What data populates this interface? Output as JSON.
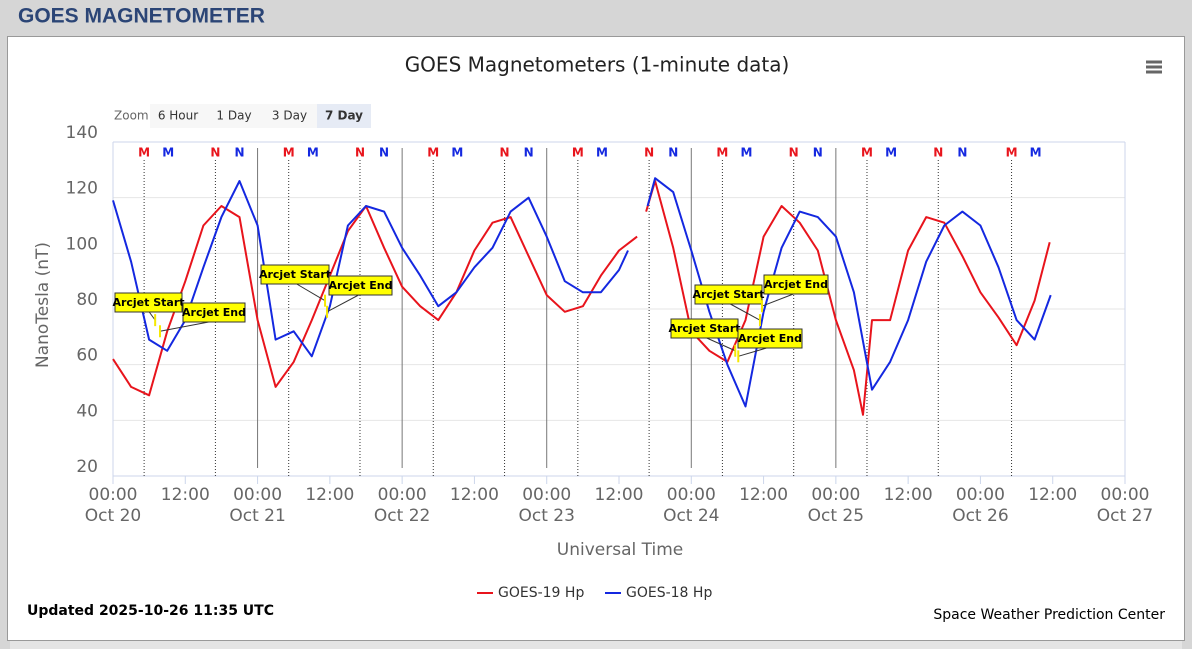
{
  "header": {
    "title": "GOES MAGNETOMETER"
  },
  "zoom": {
    "label": "Zoom",
    "buttons": [
      {
        "label": "6 Hour",
        "selected": false
      },
      {
        "label": "1 Day",
        "selected": false
      },
      {
        "label": "3 Day",
        "selected": false
      },
      {
        "label": "7 Day",
        "selected": true
      }
    ]
  },
  "chart_data": {
    "type": "line",
    "title": "GOES Magnetometers (1-minute data)",
    "x_label": "Universal Time",
    "y_label": "NanoTesla (nT)",
    "xlim": [
      "Oct 20 00:00",
      "Oct 27 00:00"
    ],
    "xticks": [
      {
        "value": "Oct 20 00:00",
        "label": "00:00",
        "date": "Oct 20"
      },
      {
        "value": "Oct 20 12:00",
        "label": "12:00"
      },
      {
        "value": "Oct 21 00:00",
        "label": "00:00",
        "date": "Oct 21"
      },
      {
        "value": "Oct 21 12:00",
        "label": "12:00"
      },
      {
        "value": "Oct 22 00:00",
        "label": "00:00",
        "date": "Oct 22"
      },
      {
        "value": "Oct 22 12:00",
        "label": "12:00"
      },
      {
        "value": "Oct 23 00:00",
        "label": "00:00",
        "date": "Oct 23"
      },
      {
        "value": "Oct 23 12:00",
        "label": "12:00"
      },
      {
        "value": "Oct 24 00:00",
        "label": "00:00",
        "date": "Oct 24"
      },
      {
        "value": "Oct 24 12:00",
        "label": "12:00"
      },
      {
        "value": "Oct 25 00:00",
        "label": "00:00",
        "date": "Oct 25"
      },
      {
        "value": "Oct 25 12:00",
        "label": "12:00"
      },
      {
        "value": "Oct 26 00:00",
        "label": "00:00",
        "date": "Oct 26"
      },
      {
        "value": "Oct 26 12:00",
        "label": "12:00"
      },
      {
        "value": "Oct 27 00:00",
        "label": "00:00",
        "date": "Oct 27"
      }
    ],
    "ylim": [
      20,
      140
    ],
    "yticks": [
      20,
      40,
      60,
      80,
      100,
      120,
      140
    ],
    "grid": true,
    "series": [
      {
        "name": "GOES-19 Hp",
        "color": "#e8141c",
        "x": [
          "Oct 20 00:00",
          "Oct 20 03:00",
          "Oct 20 06:00",
          "Oct 20 09:00",
          "Oct 20 12:00",
          "Oct 20 15:00",
          "Oct 20 18:00",
          "Oct 20 21:00",
          "Oct 21 00:00",
          "Oct 21 03:00",
          "Oct 21 06:00",
          "Oct 21 09:00",
          "Oct 21 12:00",
          "Oct 21 15:00",
          "Oct 21 18:00",
          "Oct 21 21:00",
          "Oct 22 00:00",
          "Oct 22 03:00",
          "Oct 22 06:00",
          "Oct 22 09:00",
          "Oct 22 12:00",
          "Oct 22 15:00",
          "Oct 22 18:00",
          "Oct 22 21:00",
          "Oct 23 00:00",
          "Oct 23 03:00",
          "Oct 23 06:00",
          "Oct 23 09:00",
          "Oct 23 12:00",
          "Oct 23 15:00",
          "Oct 23 15:30",
          "Oct 23 16:30",
          "Oct 23 18:00",
          "Oct 23 21:00",
          "Oct 24 00:00",
          "Oct 24 03:00",
          "Oct 24 06:00",
          "Oct 24 09:00",
          "Oct 24 12:00",
          "Oct 24 15:00",
          "Oct 24 18:00",
          "Oct 24 21:00",
          "Oct 25 00:00",
          "Oct 25 03:00",
          "Oct 25 04:30",
          "Oct 25 06:00",
          "Oct 25 09:00",
          "Oct 25 12:00",
          "Oct 25 15:00",
          "Oct 25 18:00",
          "Oct 25 21:00",
          "Oct 26 00:00",
          "Oct 26 03:00",
          "Oct 26 06:00",
          "Oct 26 09:00",
          "Oct 26 11:30"
        ],
        "values": [
          62,
          52,
          49,
          72,
          90,
          110,
          117,
          113,
          76,
          52,
          61,
          76,
          92,
          108,
          117,
          102,
          88,
          81,
          76,
          86,
          101,
          111,
          113,
          99,
          85,
          79,
          81,
          92,
          101,
          106,
          null,
          115,
          126,
          102,
          72,
          65,
          61,
          76,
          106,
          117,
          111,
          101,
          76,
          58,
          42,
          76,
          76,
          101,
          113,
          111,
          99,
          86,
          77,
          67,
          83,
          104
        ]
      },
      {
        "name": "GOES-18 Hp",
        "color": "#1428e0",
        "x": [
          "Oct 20 00:00",
          "Oct 20 03:00",
          "Oct 20 06:00",
          "Oct 20 09:00",
          "Oct 20 12:00",
          "Oct 20 15:00",
          "Oct 20 18:00",
          "Oct 20 21:00",
          "Oct 21 00:00",
          "Oct 21 03:00",
          "Oct 21 06:00",
          "Oct 21 09:00",
          "Oct 21 12:00",
          "Oct 21 15:00",
          "Oct 21 18:00",
          "Oct 21 21:00",
          "Oct 22 00:00",
          "Oct 22 03:00",
          "Oct 22 06:00",
          "Oct 22 09:00",
          "Oct 22 12:00",
          "Oct 22 15:00",
          "Oct 22 18:00",
          "Oct 22 21:00",
          "Oct 23 00:00",
          "Oct 23 03:00",
          "Oct 23 06:00",
          "Oct 23 09:00",
          "Oct 23 12:00",
          "Oct 23 13:30",
          "Oct 23 15:00",
          "Oct 23 16:45",
          "Oct 23 18:00",
          "Oct 23 21:00",
          "Oct 24 00:00",
          "Oct 24 03:00",
          "Oct 24 06:00",
          "Oct 24 09:00",
          "Oct 24 12:00",
          "Oct 24 15:00",
          "Oct 24 18:00",
          "Oct 24 21:00",
          "Oct 25 00:00",
          "Oct 25 03:00",
          "Oct 25 06:00",
          "Oct 25 09:00",
          "Oct 25 12:00",
          "Oct 25 15:00",
          "Oct 25 18:00",
          "Oct 25 21:00",
          "Oct 26 00:00",
          "Oct 26 03:00",
          "Oct 26 06:00",
          "Oct 26 09:00",
          "Oct 26 11:40"
        ],
        "values": [
          119,
          97,
          69,
          65,
          76,
          95,
          113,
          126,
          110,
          69,
          72,
          63,
          81,
          110,
          117,
          115,
          102,
          92,
          81,
          86,
          95,
          102,
          115,
          120,
          106,
          90,
          86,
          86,
          94,
          101,
          null,
          117,
          127,
          122,
          101,
          79,
          60,
          45,
          79,
          102,
          115,
          113,
          106,
          86,
          51,
          61,
          76,
          97,
          110,
          115,
          110,
          95,
          76,
          69,
          85
        ]
      }
    ],
    "markers": [
      {
        "label": "M",
        "x": "Oct 20 05:10",
        "color": "#e8141c"
      },
      {
        "label": "M",
        "x": "Oct 20 09:10",
        "color": "#1428e0"
      },
      {
        "label": "N",
        "x": "Oct 20 17:00",
        "color": "#e8141c"
      },
      {
        "label": "N",
        "x": "Oct 20 21:00",
        "color": "#1428e0"
      },
      {
        "label": "M",
        "x": "Oct 21 05:10",
        "color": "#e8141c"
      },
      {
        "label": "M",
        "x": "Oct 21 09:10",
        "color": "#1428e0"
      },
      {
        "label": "N",
        "x": "Oct 21 17:00",
        "color": "#e8141c"
      },
      {
        "label": "N",
        "x": "Oct 21 21:00",
        "color": "#1428e0"
      },
      {
        "label": "M",
        "x": "Oct 22 05:10",
        "color": "#e8141c"
      },
      {
        "label": "M",
        "x": "Oct 22 09:10",
        "color": "#1428e0"
      },
      {
        "label": "N",
        "x": "Oct 22 17:00",
        "color": "#e8141c"
      },
      {
        "label": "N",
        "x": "Oct 22 21:00",
        "color": "#1428e0"
      },
      {
        "label": "M",
        "x": "Oct 23 05:10",
        "color": "#e8141c"
      },
      {
        "label": "M",
        "x": "Oct 23 09:10",
        "color": "#1428e0"
      },
      {
        "label": "N",
        "x": "Oct 23 17:00",
        "color": "#e8141c"
      },
      {
        "label": "N",
        "x": "Oct 23 21:00",
        "color": "#1428e0"
      },
      {
        "label": "M",
        "x": "Oct 24 05:10",
        "color": "#e8141c"
      },
      {
        "label": "M",
        "x": "Oct 24 09:10",
        "color": "#1428e0"
      },
      {
        "label": "N",
        "x": "Oct 24 17:00",
        "color": "#e8141c"
      },
      {
        "label": "N",
        "x": "Oct 24 21:00",
        "color": "#1428e0"
      },
      {
        "label": "M",
        "x": "Oct 25 05:10",
        "color": "#e8141c"
      },
      {
        "label": "M",
        "x": "Oct 25 09:10",
        "color": "#1428e0"
      },
      {
        "label": "N",
        "x": "Oct 25 17:00",
        "color": "#e8141c"
      },
      {
        "label": "N",
        "x": "Oct 25 21:00",
        "color": "#1428e0"
      },
      {
        "label": "M",
        "x": "Oct 26 05:10",
        "color": "#e8141c"
      },
      {
        "label": "M",
        "x": "Oct 26 09:10",
        "color": "#1428e0"
      }
    ],
    "annotations": [
      {
        "text": "Arcjet Start",
        "x": "Oct 20 07:00",
        "y": 76
      },
      {
        "text": "Arcjet End",
        "x": "Oct 20 07:48",
        "y": 72
      },
      {
        "text": "Arcjet Start",
        "x": "Oct 21 11:12",
        "y": 83
      },
      {
        "text": "Arcjet End",
        "x": "Oct 21 11:32",
        "y": 79
      },
      {
        "text": "Arcjet Start",
        "x": "Oct 24 11:24",
        "y": 76
      },
      {
        "text": "Arcjet End",
        "x": "Oct 24 11:44",
        "y": 81
      },
      {
        "text": "Arcjet Start",
        "x": "Oct 24 07:18",
        "y": 65
      },
      {
        "text": "Arcjet End",
        "x": "Oct 24 07:48",
        "y": 63
      }
    ]
  },
  "footer": {
    "updated": "Updated 2025-10-26 11:35 UTC",
    "credit": "Space Weather Prediction Center"
  }
}
